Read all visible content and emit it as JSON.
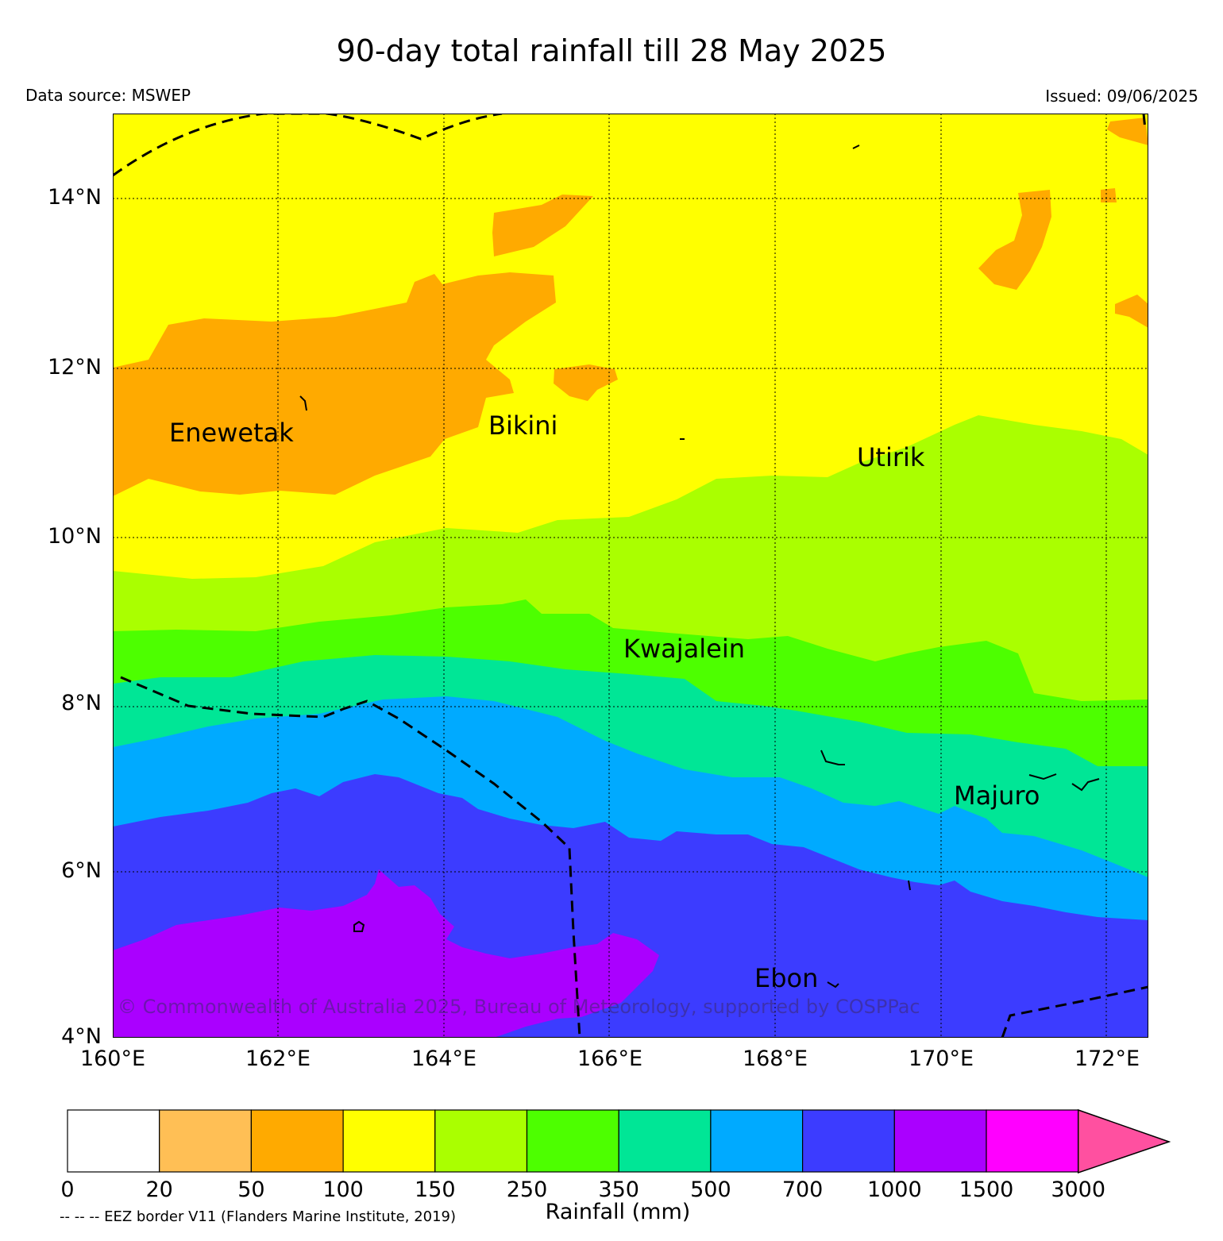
{
  "title": "90-day total rainfall till 28 May 2025",
  "data_source": "Data source: MSWEP",
  "issued": "Issued: 09/06/2025",
  "lat_labels": [
    "14°N",
    "12°N",
    "10°N",
    "8°N",
    "6°N",
    "4°N"
  ],
  "lon_labels": [
    "160°E",
    "162°E",
    "164°E",
    "166°E",
    "168°E",
    "170°E",
    "172°E"
  ],
  "places": [
    {
      "name": "Enewetak"
    },
    {
      "name": "Bikini"
    },
    {
      "name": "Utirik"
    },
    {
      "name": "Kwajalein"
    },
    {
      "name": "Majuro"
    },
    {
      "name": "Ebon"
    }
  ],
  "copyright": "© Commonwealth of Australia 2025, Bureau of Meteorology, supported by COSPPac",
  "colorbar": {
    "title": "Rainfall (mm)",
    "tick_labels": [
      "0",
      "20",
      "50",
      "100",
      "150",
      "250",
      "350",
      "500",
      "700",
      "1000",
      "1500",
      "3000"
    ],
    "colors": [
      "#ffffff",
      "#ffbf55",
      "#ffaa00",
      "#ffff00",
      "#aaff00",
      "#4dff00",
      "#00e696",
      "#00aaff",
      "#3c3cff",
      "#aa00ff",
      "#ff00ff",
      "#ff50a0"
    ]
  },
  "eez_note": "-- -- -- EEZ border V11 (Flanders Marine Institute, 2019)"
}
